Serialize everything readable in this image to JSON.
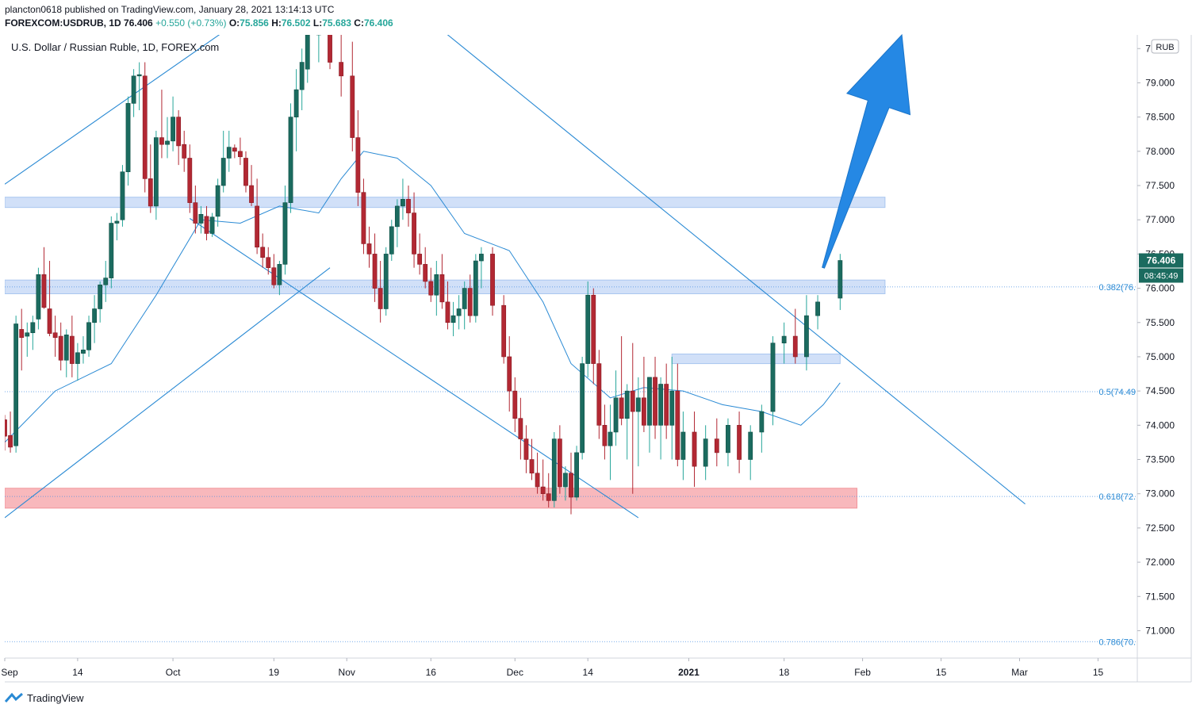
{
  "header": {
    "publisher": "plancton0618 published on TradingView.com, January 28, 2021 13:14:13 UTC",
    "symbol": "FOREXCOM:USDRUB, 1D",
    "last": "76.406",
    "change": "+0.550 (+0.73%)",
    "o_label": "O:",
    "o": "75.856",
    "h_label": "H:",
    "h": "76.502",
    "l_label": "L:",
    "l": "75.683",
    "c_label": "C:",
    "c": "76.406"
  },
  "footer": {
    "brand": "TradingView"
  },
  "colors": {
    "up": "#26a69a",
    "up_fill": "#1b6b5f",
    "down": "#b22833",
    "line": "#2a8ad4",
    "zone_blue": "#c9dbf7",
    "zone_red": "#f8b4b8",
    "arrow": "#2588e4",
    "price_badge": "#1b6b5f"
  },
  "chart_data": {
    "type": "candlestick",
    "title": "U.S. Dollar / Russian Ruble, 1D, FOREX.com",
    "currency": "RUB",
    "ylim": [
      70.6,
      79.7
    ],
    "y_ticks": [
      "71.000",
      "71.500",
      "72.000",
      "72.500",
      "73.000",
      "73.500",
      "74.000",
      "74.500",
      "75.000",
      "75.500",
      "76.000",
      "76.500",
      "77.000",
      "77.500",
      "78.000",
      "78.500",
      "79.000",
      "79.500"
    ],
    "x_ticks": [
      "Sep",
      "14",
      "Oct",
      "19",
      "Nov",
      "16",
      "Dec",
      "14",
      "2021",
      "18",
      "Feb",
      "15",
      "Mar",
      "15"
    ],
    "x_ticks_bold": [
      "2021"
    ],
    "x_range": [
      "2020-09-01",
      "2021-03-22"
    ],
    "x_tick_dates": [
      "2020-09-01",
      "2020-09-14",
      "2020-10-01",
      "2020-10-19",
      "2020-11-01",
      "2020-11-16",
      "2020-12-01",
      "2020-12-14",
      "2021-01-01",
      "2021-01-18",
      "2021-02-01",
      "2021-02-15",
      "2021-03-01",
      "2021-03-15"
    ],
    "last_price": "76.406",
    "countdown": "08:45:49",
    "fib_levels": [
      {
        "label": "0.382(76.",
        "value": 76.02
      },
      {
        "label": "0.5(74.49",
        "value": 74.49
      },
      {
        "label": "0.618(72.",
        "value": 72.96
      },
      {
        "label": "0.786(70.",
        "value": 70.84
      }
    ],
    "zones": [
      {
        "color": "blue",
        "from": "2020-09-01",
        "to": "2021-02-05",
        "low": 77.18,
        "high": 77.33
      },
      {
        "color": "blue",
        "from": "2020-09-01",
        "to": "2021-02-05",
        "low": 75.92,
        "high": 76.12
      },
      {
        "color": "blue",
        "from": "2020-12-29",
        "to": "2021-01-28",
        "low": 74.9,
        "high": 75.04
      },
      {
        "color": "red",
        "from": "2020-09-01",
        "to": "2021-01-31",
        "low": 72.79,
        "high": 73.08
      }
    ],
    "trendlines": [
      {
        "from": [
          "2020-09-01",
          77.52
        ],
        "to": [
          "2020-10-25",
          80.6
        ]
      },
      {
        "from": [
          "2020-09-01",
          72.65
        ],
        "to": [
          "2020-10-29",
          76.3
        ]
      },
      {
        "from": [
          "2020-10-04",
          77.02
        ],
        "to": [
          "2020-12-23",
          72.65
        ]
      },
      {
        "from": [
          "2020-11-10",
          80.3
        ],
        "to": [
          "2021-03-02",
          72.85
        ]
      }
    ],
    "arrow": {
      "from": [
        "2021-01-25",
        76.3
      ],
      "to": [
        "2021-02-08",
        79.7
      ]
    },
    "ma_series": [
      [
        "2020-09-01",
        73.75
      ],
      [
        "2020-09-10",
        74.5
      ],
      [
        "2020-09-20",
        74.9
      ],
      [
        "2020-09-28",
        75.9
      ],
      [
        "2020-10-06",
        77.0
      ],
      [
        "2020-10-13",
        76.95
      ],
      [
        "2020-10-20",
        77.2
      ],
      [
        "2020-10-27",
        77.1
      ],
      [
        "2020-10-31",
        77.6
      ],
      [
        "2020-11-04",
        78.0
      ],
      [
        "2020-11-10",
        77.9
      ],
      [
        "2020-11-16",
        77.5
      ],
      [
        "2020-11-22",
        76.8
      ],
      [
        "2020-11-30",
        76.55
      ],
      [
        "2020-12-06",
        75.8
      ],
      [
        "2020-12-11",
        74.9
      ],
      [
        "2020-12-18",
        74.4
      ],
      [
        "2020-12-24",
        74.55
      ],
      [
        "2020-12-31",
        74.5
      ],
      [
        "2021-01-07",
        74.3
      ],
      [
        "2021-01-14",
        74.2
      ],
      [
        "2021-01-21",
        74.0
      ],
      [
        "2021-01-25",
        74.3
      ],
      [
        "2021-01-28",
        74.62
      ]
    ],
    "candles": [
      [
        "2020-09-01",
        74.08,
        74.15,
        73.63,
        73.84
      ],
      [
        "2020-09-02",
        73.85,
        74.2,
        73.6,
        73.68
      ],
      [
        "2020-09-03",
        73.7,
        75.6,
        73.6,
        75.48
      ],
      [
        "2020-09-04",
        75.4,
        75.7,
        74.8,
        75.28
      ],
      [
        "2020-09-05",
        75.3,
        75.5,
        75.0,
        75.35
      ],
      [
        "2020-09-06",
        75.35,
        75.6,
        75.1,
        75.5
      ],
      [
        "2020-09-07",
        75.55,
        76.3,
        75.4,
        76.2
      ],
      [
        "2020-09-08",
        76.2,
        76.6,
        75.7,
        75.72
      ],
      [
        "2020-09-09",
        75.7,
        76.4,
        75.3,
        75.34
      ],
      [
        "2020-09-10",
        75.35,
        75.6,
        75.0,
        75.28
      ],
      [
        "2020-09-11",
        75.3,
        75.5,
        74.8,
        74.95
      ],
      [
        "2020-09-12",
        74.95,
        75.4,
        74.7,
        75.32
      ],
      [
        "2020-09-13",
        75.3,
        75.6,
        74.7,
        74.9
      ],
      [
        "2020-09-14",
        74.9,
        75.2,
        74.65,
        75.06
      ],
      [
        "2020-09-15",
        75.05,
        75.3,
        74.9,
        75.1
      ],
      [
        "2020-09-16",
        75.1,
        75.6,
        75.0,
        75.5
      ],
      [
        "2020-09-17",
        75.5,
        75.9,
        75.2,
        75.7
      ],
      [
        "2020-09-18",
        75.7,
        76.1,
        75.5,
        76.05
      ],
      [
        "2020-09-19",
        76.05,
        76.4,
        75.8,
        76.15
      ],
      [
        "2020-09-20",
        76.15,
        77.05,
        76.0,
        76.95
      ],
      [
        "2020-09-21",
        76.95,
        77.1,
        76.7,
        76.98
      ],
      [
        "2020-09-22",
        77.0,
        77.8,
        76.9,
        77.7
      ],
      [
        "2020-09-23",
        77.7,
        78.8,
        77.5,
        78.7
      ],
      [
        "2020-09-24",
        78.7,
        79.2,
        78.5,
        79.1
      ],
      [
        "2020-09-25",
        79.1,
        79.3,
        78.6,
        79.12
      ],
      [
        "2020-09-26",
        79.1,
        79.3,
        77.4,
        77.6
      ],
      [
        "2020-09-27",
        77.6,
        78.1,
        77.1,
        77.2
      ],
      [
        "2020-09-28",
        77.2,
        78.3,
        77.0,
        78.2
      ],
      [
        "2020-09-29",
        78.2,
        78.9,
        77.9,
        78.1
      ],
      [
        "2020-09-30",
        78.1,
        78.5,
        77.9,
        78.15
      ],
      [
        "2020-10-01",
        78.15,
        78.8,
        78.0,
        78.5
      ],
      [
        "2020-10-02",
        78.5,
        78.6,
        77.8,
        78.08
      ],
      [
        "2020-10-03",
        78.1,
        78.3,
        77.7,
        77.9
      ],
      [
        "2020-10-04",
        77.9,
        78.1,
        77.1,
        77.25
      ],
      [
        "2020-10-05",
        77.25,
        77.5,
        76.8,
        76.95
      ],
      [
        "2020-10-06",
        76.95,
        77.2,
        76.8,
        77.08
      ],
      [
        "2020-10-07",
        77.05,
        77.2,
        76.7,
        76.8
      ],
      [
        "2020-10-08",
        76.8,
        77.1,
        76.75,
        77.04
      ],
      [
        "2020-10-09",
        77.05,
        77.6,
        76.9,
        77.5
      ],
      [
        "2020-10-10",
        77.5,
        78.3,
        77.4,
        77.9
      ],
      [
        "2020-10-11",
        77.9,
        78.3,
        77.7,
        78.06
      ],
      [
        "2020-10-12",
        78.05,
        78.1,
        77.9,
        78.0
      ],
      [
        "2020-10-13",
        78.0,
        78.2,
        77.8,
        77.92
      ],
      [
        "2020-10-14",
        77.9,
        78.0,
        77.4,
        77.5
      ],
      [
        "2020-10-15",
        77.5,
        77.8,
        77.2,
        77.25
      ],
      [
        "2020-10-16",
        77.2,
        77.6,
        76.5,
        76.6
      ],
      [
        "2020-10-17",
        76.6,
        76.8,
        76.3,
        76.45
      ],
      [
        "2020-10-18",
        76.45,
        76.6,
        76.2,
        76.3
      ],
      [
        "2020-10-19",
        76.3,
        76.5,
        76.0,
        76.05
      ],
      [
        "2020-10-20",
        76.05,
        76.4,
        75.9,
        76.35
      ],
      [
        "2020-10-21",
        76.35,
        77.5,
        76.2,
        77.25
      ],
      [
        "2020-10-22",
        77.25,
        78.7,
        77.1,
        78.5
      ],
      [
        "2020-10-23",
        78.5,
        79.2,
        78.0,
        78.9
      ],
      [
        "2020-10-24",
        78.9,
        79.5,
        78.6,
        79.3
      ],
      [
        "2020-10-25",
        79.2,
        79.9,
        79.0,
        79.7
      ],
      [
        "2020-10-27",
        79.7,
        80.2,
        79.3,
        79.95
      ],
      [
        "2020-10-29",
        79.95,
        80.1,
        79.2,
        79.3
      ],
      [
        "2020-10-31",
        79.3,
        79.9,
        78.8,
        79.1
      ],
      [
        "2020-11-02",
        79.1,
        79.6,
        78.0,
        78.2
      ],
      [
        "2020-11-03",
        78.2,
        78.6,
        77.2,
        77.4
      ],
      [
        "2020-11-04",
        77.4,
        77.6,
        76.5,
        76.65
      ],
      [
        "2020-11-05",
        76.65,
        76.9,
        76.3,
        76.5
      ],
      [
        "2020-11-06",
        76.5,
        76.8,
        75.8,
        76.0
      ],
      [
        "2020-11-07",
        76.0,
        76.4,
        75.5,
        75.7
      ],
      [
        "2020-11-08",
        75.7,
        76.6,
        75.6,
        76.5
      ],
      [
        "2020-11-09",
        76.5,
        77.0,
        76.4,
        76.9
      ],
      [
        "2020-11-10",
        76.9,
        77.3,
        76.6,
        77.2
      ],
      [
        "2020-11-11",
        77.2,
        77.6,
        77.0,
        77.3
      ],
      [
        "2020-11-12",
        77.3,
        77.5,
        76.9,
        77.1
      ],
      [
        "2020-11-13",
        77.1,
        77.4,
        76.3,
        76.5
      ],
      [
        "2020-11-14",
        76.5,
        76.8,
        76.2,
        76.35
      ],
      [
        "2020-11-15",
        76.35,
        76.6,
        76.0,
        76.1
      ],
      [
        "2020-11-16",
        76.1,
        76.3,
        75.8,
        75.9
      ],
      [
        "2020-11-17",
        75.9,
        76.4,
        75.6,
        76.2
      ],
      [
        "2020-11-18",
        76.2,
        76.5,
        75.7,
        75.8
      ],
      [
        "2020-11-19",
        75.8,
        76.1,
        75.4,
        75.5
      ],
      [
        "2020-11-20",
        75.5,
        75.8,
        75.3,
        75.6
      ],
      [
        "2020-11-21",
        75.6,
        75.9,
        75.4,
        75.7
      ],
      [
        "2020-11-22",
        75.7,
        76.1,
        75.4,
        76.0
      ],
      [
        "2020-11-23",
        76.0,
        76.2,
        75.5,
        75.6
      ],
      [
        "2020-11-24",
        75.6,
        76.5,
        75.5,
        76.4
      ],
      [
        "2020-11-25",
        76.4,
        76.6,
        76.0,
        76.5
      ],
      [
        "2020-11-27",
        76.5,
        76.6,
        75.6,
        75.75
      ],
      [
        "2020-11-29",
        75.75,
        75.9,
        74.9,
        75.0
      ],
      [
        "2020-11-30",
        75.0,
        75.3,
        74.2,
        74.5
      ],
      [
        "2020-12-01",
        74.5,
        74.7,
        73.9,
        74.1
      ],
      [
        "2020-12-02",
        74.1,
        74.4,
        73.5,
        73.8
      ],
      [
        "2020-12-03",
        73.8,
        74.0,
        73.3,
        73.5
      ],
      [
        "2020-12-04",
        73.5,
        73.8,
        73.2,
        73.3
      ],
      [
        "2020-12-05",
        73.3,
        73.6,
        73.0,
        73.1
      ],
      [
        "2020-12-06",
        73.1,
        73.5,
        72.9,
        73.0
      ],
      [
        "2020-12-07",
        73.0,
        73.3,
        72.8,
        72.9
      ],
      [
        "2020-12-08",
        72.9,
        73.9,
        72.8,
        73.8
      ],
      [
        "2020-12-09",
        73.8,
        74.0,
        73.0,
        73.1
      ],
      [
        "2020-12-10",
        73.1,
        73.4,
        72.9,
        73.3
      ],
      [
        "2020-12-11",
        73.3,
        73.6,
        72.7,
        72.95
      ],
      [
        "2020-12-12",
        72.95,
        73.7,
        72.9,
        73.6
      ],
      [
        "2020-12-13",
        73.6,
        75.0,
        73.5,
        74.9
      ],
      [
        "2020-12-14",
        74.9,
        76.1,
        74.7,
        75.9
      ],
      [
        "2020-12-15",
        75.9,
        76.0,
        74.6,
        74.9
      ],
      [
        "2020-12-16",
        74.9,
        75.1,
        73.8,
        74.0
      ],
      [
        "2020-12-17",
        74.0,
        74.3,
        73.5,
        73.7
      ],
      [
        "2020-12-18",
        73.7,
        74.3,
        73.2,
        73.9
      ],
      [
        "2020-12-19",
        73.9,
        74.8,
        73.7,
        74.4
      ],
      [
        "2020-12-20",
        74.4,
        75.3,
        74.0,
        74.1
      ],
      [
        "2020-12-21",
        74.1,
        74.6,
        73.5,
        74.5
      ],
      [
        "2020-12-22",
        74.5,
        75.2,
        73.0,
        74.2
      ],
      [
        "2020-12-23",
        74.2,
        74.7,
        73.4,
        74.4
      ],
      [
        "2020-12-24",
        74.4,
        75.0,
        73.9,
        74.0
      ],
      [
        "2020-12-25",
        74.0,
        74.7,
        73.6,
        74.7
      ],
      [
        "2020-12-26",
        74.7,
        75.0,
        73.8,
        74.0
      ],
      [
        "2020-12-27",
        74.0,
        74.7,
        73.5,
        74.6
      ],
      [
        "2020-12-28",
        74.6,
        74.9,
        73.8,
        74.0
      ],
      [
        "2020-12-29",
        74.0,
        75.0,
        73.5,
        74.5
      ],
      [
        "2020-12-30",
        74.5,
        74.9,
        73.4,
        73.5
      ],
      [
        "2020-12-31",
        73.5,
        74.2,
        73.2,
        73.9
      ],
      [
        "2021-01-02",
        73.9,
        74.2,
        73.1,
        73.4
      ],
      [
        "2021-01-04",
        73.4,
        74.0,
        73.2,
        73.8
      ],
      [
        "2021-01-06",
        73.8,
        74.1,
        73.4,
        73.6
      ],
      [
        "2021-01-08",
        73.6,
        74.1,
        73.4,
        74.0
      ],
      [
        "2021-01-10",
        74.0,
        74.2,
        73.3,
        73.5
      ],
      [
        "2021-01-12",
        73.5,
        74.0,
        73.2,
        73.9
      ],
      [
        "2021-01-14",
        73.9,
        74.3,
        73.6,
        74.2
      ],
      [
        "2021-01-16",
        74.2,
        75.3,
        74.0,
        75.2
      ],
      [
        "2021-01-18",
        75.2,
        75.5,
        74.9,
        75.3
      ],
      [
        "2021-01-20",
        75.3,
        75.7,
        74.9,
        75.0
      ],
      [
        "2021-01-22",
        75.0,
        75.9,
        74.8,
        75.6
      ],
      [
        "2021-01-24",
        75.6,
        75.9,
        75.4,
        75.8
      ],
      [
        "2021-01-28",
        75.856,
        76.502,
        75.683,
        76.406
      ]
    ]
  }
}
